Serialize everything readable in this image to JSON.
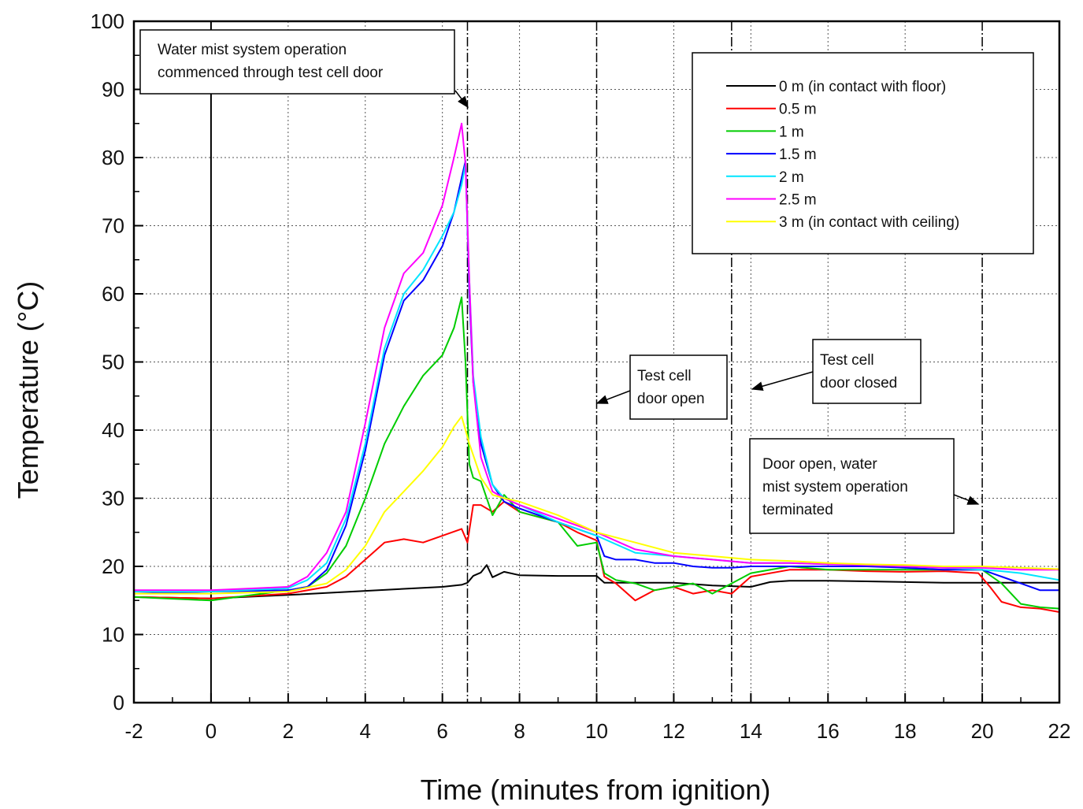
{
  "chart_data": {
    "type": "line",
    "xlabel": "Time (minutes from ignition)",
    "ylabel": "Temperature (°C)",
    "xlim": [
      -2,
      22
    ],
    "ylim": [
      0,
      100
    ],
    "xticks": [
      -2,
      0,
      2,
      4,
      6,
      8,
      10,
      12,
      14,
      16,
      18,
      20,
      22
    ],
    "yticks": [
      0,
      10,
      20,
      30,
      40,
      50,
      60,
      70,
      80,
      90,
      100
    ],
    "grid": true,
    "legend_position": "top-right",
    "series": [
      {
        "name": "0 m (in contact with floor)",
        "color": "#000000",
        "x": [
          -2,
          0,
          2,
          4,
          5,
          6,
          6.5,
          6.65,
          6.8,
          7,
          7.15,
          7.3,
          7.6,
          8,
          9,
          10,
          10.2,
          11,
          12,
          13,
          14,
          14.5,
          15,
          16,
          17,
          18,
          19,
          20,
          21,
          22
        ],
        "y": [
          15.5,
          15.3,
          15.8,
          16.4,
          16.7,
          17.0,
          17.3,
          17.6,
          18.6,
          19.1,
          20.2,
          18.4,
          19.2,
          18.7,
          18.6,
          18.6,
          17.6,
          17.6,
          17.6,
          17.2,
          17.0,
          17.7,
          17.9,
          17.9,
          17.8,
          17.7,
          17.6,
          17.6,
          17.6,
          17.6
        ]
      },
      {
        "name": "0.5 m",
        "color": "#ff0000",
        "x": [
          -2,
          0,
          2,
          3,
          3.5,
          4,
          4.5,
          5,
          5.5,
          6,
          6.5,
          6.65,
          6.8,
          7,
          7.3,
          7.6,
          8,
          9,
          9.5,
          10,
          10.2,
          10.5,
          11,
          11.5,
          12,
          12.5,
          13,
          13.5,
          14,
          15,
          16,
          17,
          18,
          19,
          19.9,
          20.2,
          20.5,
          21,
          21.5,
          22
        ],
        "y": [
          15.5,
          15.3,
          16.0,
          17.0,
          18.5,
          21.0,
          23.5,
          24.0,
          23.5,
          24.5,
          25.5,
          23.5,
          29.0,
          29.0,
          28.0,
          29.5,
          28.0,
          26.5,
          25.0,
          23.8,
          18.5,
          17.5,
          15.0,
          16.5,
          17.0,
          16.0,
          16.5,
          16.0,
          18.5,
          19.5,
          19.5,
          19.3,
          19.2,
          19.3,
          19.0,
          17.0,
          14.8,
          14.0,
          13.8,
          13.3
        ]
      },
      {
        "name": "1 m",
        "color": "#00cc00",
        "x": [
          -2,
          0,
          2,
          2.5,
          3,
          3.5,
          4,
          4.5,
          5,
          5.5,
          6,
          6.3,
          6.5,
          6.6,
          6.7,
          6.8,
          7,
          7.3,
          7.6,
          8,
          9,
          9.5,
          10,
          10.2,
          10.5,
          11,
          11.5,
          12,
          12.5,
          13,
          13.5,
          14,
          15,
          16,
          17,
          18,
          19,
          20,
          20.5,
          21,
          21.5,
          22
        ],
        "y": [
          15.5,
          15.0,
          16.5,
          17.0,
          19.0,
          23.0,
          30.0,
          38.0,
          43.5,
          48.0,
          51.0,
          55.0,
          59.5,
          50.0,
          35.0,
          33.0,
          32.5,
          27.5,
          30.5,
          28.0,
          26.5,
          23.0,
          23.5,
          19.0,
          18.0,
          17.5,
          16.5,
          17.0,
          17.5,
          16.0,
          17.5,
          19.0,
          20.0,
          19.5,
          19.5,
          19.5,
          19.5,
          19.5,
          17.5,
          14.5,
          14.0,
          13.8
        ]
      },
      {
        "name": "1.5 m",
        "color": "#0000ff",
        "x": [
          -2,
          0,
          2,
          2.5,
          3,
          3.5,
          4,
          4.5,
          5,
          5.5,
          6,
          6.3,
          6.5,
          6.6,
          6.7,
          6.8,
          7,
          7.3,
          7.6,
          8,
          9,
          10,
          10.2,
          10.5,
          11,
          11.5,
          12,
          12.5,
          13,
          13.5,
          14,
          15,
          16,
          17,
          18,
          19,
          20,
          20.5,
          21,
          21.5,
          22
        ],
        "y": [
          16.0,
          16.3,
          16.5,
          17.0,
          19.5,
          26.0,
          37.0,
          51.0,
          59.0,
          62.0,
          67.0,
          72.0,
          77.0,
          79.5,
          60.0,
          47.0,
          38.0,
          32.0,
          29.5,
          28.5,
          26.5,
          24.5,
          21.5,
          21.0,
          21.0,
          20.5,
          20.5,
          20.0,
          19.8,
          19.8,
          20.0,
          20.0,
          20.0,
          20.0,
          19.8,
          19.5,
          19.5,
          18.5,
          17.5,
          16.5,
          16.5
        ]
      },
      {
        "name": "2 m",
        "color": "#00e5ff",
        "x": [
          -2,
          0,
          2,
          2.5,
          3,
          3.5,
          4,
          4.5,
          5,
          5.5,
          6,
          6.3,
          6.5,
          6.6,
          6.7,
          6.8,
          7,
          7.3,
          7.6,
          8,
          9,
          10,
          11,
          12,
          13,
          14,
          15,
          16,
          17,
          18,
          19,
          20,
          20.5,
          21,
          21.5,
          22
        ],
        "y": [
          16.3,
          16.3,
          16.8,
          18.0,
          20.5,
          27.0,
          38.0,
          52.0,
          60.0,
          63.5,
          68.5,
          72.0,
          76.0,
          79.0,
          62.0,
          48.0,
          39.0,
          32.0,
          30.0,
          29.0,
          26.5,
          24.5,
          22.0,
          21.5,
          21.0,
          20.5,
          20.5,
          20.3,
          20.2,
          20.0,
          19.8,
          19.5,
          19.3,
          19.0,
          18.5,
          18.0
        ]
      },
      {
        "name": "2.5 m",
        "color": "#ff00ff",
        "x": [
          -2,
          0,
          2,
          2.5,
          3,
          3.5,
          4,
          4.5,
          5,
          5.5,
          6,
          6.3,
          6.5,
          6.6,
          6.7,
          6.8,
          7,
          7.3,
          7.6,
          8,
          9,
          10,
          11,
          12,
          13,
          14,
          15,
          16,
          17,
          18,
          19,
          20,
          21,
          22
        ],
        "y": [
          16.5,
          16.5,
          17.0,
          18.5,
          22.0,
          28.0,
          41.0,
          55.0,
          63.0,
          66.0,
          73.0,
          80.0,
          85.0,
          79.0,
          62.0,
          47.0,
          36.0,
          31.0,
          30.0,
          29.0,
          27.0,
          25.0,
          22.5,
          21.5,
          21.0,
          20.5,
          20.5,
          20.3,
          20.2,
          20.0,
          19.8,
          19.8,
          19.5,
          19.5
        ]
      },
      {
        "name": "3 m (in contact with ceiling)",
        "color": "#ffff00",
        "x": [
          -2,
          0,
          2,
          3,
          3.5,
          4,
          4.5,
          5,
          5.5,
          6,
          6.3,
          6.5,
          6.7,
          7,
          7.3,
          7.6,
          8,
          9,
          10,
          11,
          12,
          13,
          14,
          15,
          16,
          17,
          18,
          19,
          20,
          21,
          22
        ],
        "y": [
          16.0,
          16.0,
          16.3,
          17.5,
          19.5,
          23.0,
          28.0,
          31.0,
          34.0,
          37.5,
          40.5,
          42.0,
          38.0,
          33.0,
          30.5,
          30.0,
          29.5,
          27.5,
          25.0,
          23.5,
          22.0,
          21.5,
          21.0,
          20.8,
          20.5,
          20.3,
          20.2,
          20.0,
          20.0,
          19.8,
          19.6
        ]
      }
    ],
    "event_lines_x": [
      0,
      6.65,
      10,
      13.5,
      20
    ],
    "annotations": [
      {
        "name": "water-mist-start",
        "lines": [
          "Water mist system operation",
          "commenced through test cell door"
        ]
      },
      {
        "name": "door-open",
        "lines": [
          "Test cell",
          "door open"
        ]
      },
      {
        "name": "door-closed",
        "lines": [
          "Test cell",
          "door closed"
        ]
      },
      {
        "name": "mist-terminated",
        "lines": [
          "Door open, water",
          "mist system operation",
          "terminated"
        ]
      }
    ]
  }
}
